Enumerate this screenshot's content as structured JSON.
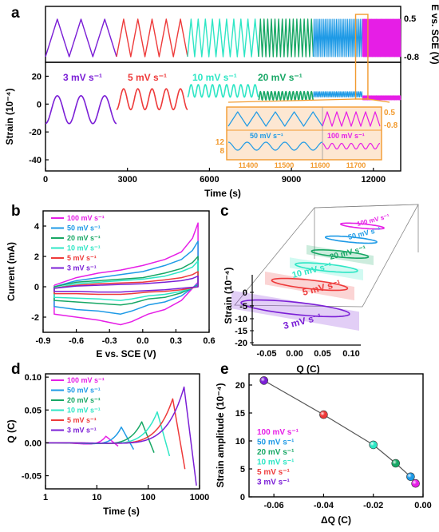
{
  "colors": {
    "r3": "#7b1fd6",
    "r5": "#ee3a3a",
    "r10": "#2ee6c5",
    "r20": "#17a765",
    "r50": "#1e9ae6",
    "r100": "#e61ee6",
    "inset_border": "#f29a2e",
    "inset_fill": "#fde7d2",
    "axis": "#000000"
  },
  "chart_data": [
    {
      "panel": "a",
      "type": "line",
      "potential_axis": {
        "ylabel": "E vs. SCE (V)",
        "ticks": [
          "0.5",
          "-0.8"
        ],
        "range": [
          -0.8,
          0.5
        ]
      },
      "strain_axis": {
        "ylabel": "Strain (10⁻⁴)",
        "yticks": [
          "20",
          "0",
          "-20",
          "-40"
        ],
        "ylim": [
          -48,
          30
        ]
      },
      "xlabel": "Time (s)",
      "xticks": [
        "0",
        "3000",
        "6000",
        "9000",
        "12000"
      ],
      "xlim": [
        0,
        13000
      ],
      "segments": [
        {
          "rate": "3 mV s⁻¹",
          "key": "r3",
          "t_start": 0,
          "t_end": 2600,
          "cycles": 3,
          "strain_min": -14,
          "strain_max": 6
        },
        {
          "rate": "5 mV s⁻¹",
          "key": "r5",
          "t_start": 2600,
          "t_end": 5200,
          "cycles": 5,
          "strain_min": -4,
          "strain_max": 11
        },
        {
          "rate": "10 mV s⁻¹",
          "key": "r10",
          "t_start": 5200,
          "t_end": 7800,
          "cycles": 10,
          "strain_min": 5,
          "strain_max": 14
        },
        {
          "rate": "20 mV s⁻¹",
          "key": "r20",
          "t_start": 7800,
          "t_end": 9800,
          "cycles": 15,
          "strain_min": 3,
          "strain_max": 9
        },
        {
          "rate": "50 mV s⁻¹",
          "key": "r50",
          "t_start": 9800,
          "t_end": 11600,
          "cycles": 35,
          "strain_min": 5,
          "strain_max": 9
        },
        {
          "rate": "100 mV s⁻¹",
          "key": "r100",
          "t_start": 11600,
          "t_end": 13000,
          "cycles": 55,
          "strain_min": 3,
          "strain_max": 6
        }
      ],
      "inset": {
        "left_labels": [
          "12",
          "8"
        ],
        "right_labels": [
          "0.5",
          "-0.8"
        ],
        "x_ticks": [
          "11400",
          "11500",
          "11600",
          "11700"
        ],
        "series": [
          "50 mV s⁻¹",
          "100 mV s⁻¹"
        ]
      }
    },
    {
      "panel": "b",
      "type": "line",
      "xlabel": "E vs. SCE (V)",
      "ylabel": "Current (mA)",
      "xlim": [
        -0.9,
        0.6
      ],
      "ylim": [
        -3,
        5
      ],
      "xticks": [
        "-0.9",
        "-0.6",
        "-0.3",
        "0.0",
        "0.3",
        "0.6"
      ],
      "yticks": [
        "4",
        "2",
        "0",
        "-2"
      ],
      "legend": [
        "100 mV s⁻¹",
        "50 mV s⁻¹",
        "20 mV s⁻¹",
        "10 mV s⁻¹",
        "5 mV s⁻¹",
        "3 mV s⁻¹"
      ],
      "series": [
        {
          "name": "100 mV s⁻¹",
          "key": "r100",
          "top": [
            [
              -0.8,
              0.1
            ],
            [
              -0.6,
              0.6
            ],
            [
              -0.4,
              0.9
            ],
            [
              -0.2,
              1.1
            ],
            [
              0.0,
              1.4
            ],
            [
              0.2,
              1.8
            ],
            [
              0.35,
              2.3
            ],
            [
              0.45,
              3.2
            ],
            [
              0.5,
              4.2
            ]
          ],
          "bottom": [
            [
              0.5,
              0.3
            ],
            [
              0.35,
              -0.9
            ],
            [
              0.2,
              -1.5
            ],
            [
              0.05,
              -1.8
            ],
            [
              -0.1,
              -2.3
            ],
            [
              -0.2,
              -2.5
            ],
            [
              -0.4,
              -2.2
            ],
            [
              -0.6,
              -2.0
            ],
            [
              -0.8,
              -1.8
            ]
          ]
        },
        {
          "name": "50 mV s⁻¹",
          "key": "r50",
          "top": [
            [
              -0.8,
              0.0
            ],
            [
              -0.6,
              0.4
            ],
            [
              -0.4,
              0.6
            ],
            [
              -0.2,
              0.8
            ],
            [
              0.0,
              1.0
            ],
            [
              0.2,
              1.4
            ],
            [
              0.35,
              1.8
            ],
            [
              0.45,
              2.4
            ],
            [
              0.5,
              3.0
            ]
          ],
          "bottom": [
            [
              0.5,
              0.2
            ],
            [
              0.35,
              -0.6
            ],
            [
              0.2,
              -1.0
            ],
            [
              0.05,
              -1.2
            ],
            [
              -0.1,
              -1.6
            ],
            [
              -0.2,
              -1.8
            ],
            [
              -0.4,
              -1.6
            ],
            [
              -0.6,
              -1.5
            ],
            [
              -0.8,
              -1.3
            ]
          ]
        },
        {
          "name": "20 mV s⁻¹",
          "key": "r20",
          "top": [
            [
              -0.8,
              0.0
            ],
            [
              -0.6,
              0.3
            ],
            [
              -0.4,
              0.4
            ],
            [
              -0.2,
              0.5
            ],
            [
              0.0,
              0.6
            ],
            [
              0.2,
              0.9
            ],
            [
              0.35,
              1.2
            ],
            [
              0.45,
              1.6
            ],
            [
              0.5,
              2.0
            ]
          ],
          "bottom": [
            [
              0.5,
              0.1
            ],
            [
              0.35,
              -0.4
            ],
            [
              0.2,
              -0.7
            ],
            [
              0.05,
              -0.8
            ],
            [
              -0.1,
              -1.1
            ],
            [
              -0.2,
              -1.2
            ],
            [
              -0.4,
              -1.1
            ],
            [
              -0.6,
              -1.0
            ],
            [
              -0.8,
              -0.9
            ]
          ]
        },
        {
          "name": "10 mV s⁻¹",
          "key": "r10",
          "top": [
            [
              -0.8,
              -0.1
            ],
            [
              -0.6,
              0.2
            ],
            [
              -0.4,
              0.3
            ],
            [
              -0.2,
              0.4
            ],
            [
              0.0,
              0.5
            ],
            [
              0.2,
              0.7
            ],
            [
              0.35,
              1.0
            ],
            [
              0.45,
              1.3
            ],
            [
              0.5,
              1.7
            ]
          ],
          "bottom": [
            [
              0.5,
              0.05
            ],
            [
              0.35,
              -0.3
            ],
            [
              0.2,
              -0.5
            ],
            [
              0.05,
              -0.6
            ],
            [
              -0.1,
              -0.8
            ],
            [
              -0.2,
              -0.9
            ],
            [
              -0.4,
              -0.8
            ],
            [
              -0.6,
              -0.75
            ],
            [
              -0.8,
              -0.7
            ]
          ]
        },
        {
          "name": "5 mV s⁻¹",
          "key": "r5",
          "top": [
            [
              -0.8,
              -0.1
            ],
            [
              -0.6,
              0.1
            ],
            [
              -0.4,
              0.2
            ],
            [
              -0.2,
              0.25
            ],
            [
              0.0,
              0.3
            ],
            [
              0.2,
              0.45
            ],
            [
              0.35,
              0.6
            ],
            [
              0.45,
              0.8
            ],
            [
              0.5,
              1.0
            ]
          ],
          "bottom": [
            [
              0.5,
              0.0
            ],
            [
              0.35,
              -0.2
            ],
            [
              0.2,
              -0.3
            ],
            [
              0.05,
              -0.35
            ],
            [
              -0.1,
              -0.45
            ],
            [
              -0.2,
              -0.5
            ],
            [
              -0.4,
              -0.5
            ],
            [
              -0.6,
              -0.45
            ],
            [
              -0.8,
              -0.45
            ]
          ]
        },
        {
          "name": "3 mV s⁻¹",
          "key": "r3",
          "top": [
            [
              -0.8,
              -0.1
            ],
            [
              -0.6,
              0.05
            ],
            [
              -0.4,
              0.1
            ],
            [
              -0.2,
              0.15
            ],
            [
              0.0,
              0.2
            ],
            [
              0.2,
              0.3
            ],
            [
              0.35,
              0.4
            ],
            [
              0.45,
              0.55
            ],
            [
              0.5,
              0.7
            ]
          ],
          "bottom": [
            [
              0.5,
              0.0
            ],
            [
              0.35,
              -0.1
            ],
            [
              0.2,
              -0.2
            ],
            [
              0.05,
              -0.25
            ],
            [
              -0.1,
              -0.3
            ],
            [
              -0.2,
              -0.35
            ],
            [
              -0.4,
              -0.35
            ],
            [
              -0.6,
              -0.3
            ],
            [
              -0.8,
              -0.3
            ]
          ]
        }
      ]
    },
    {
      "panel": "c",
      "type": "line",
      "xlabel": "Q (C)",
      "ylabel": "Strain (10⁻⁴)",
      "xticks": [
        "-0.05",
        "0.00",
        "0.05",
        "0.10"
      ],
      "yticks": [
        "0",
        "-5",
        "-10",
        "-15",
        "-20"
      ],
      "series": [
        {
          "name": "3 mV s⁻¹",
          "key": "r3"
        },
        {
          "name": "5 mV s⁻¹",
          "key": "r5"
        },
        {
          "name": "10 mV s⁻¹",
          "key": "r10"
        },
        {
          "name": "20 mV s⁻¹",
          "key": "r20"
        },
        {
          "name": "50 mV s⁻¹",
          "key": "r50"
        },
        {
          "name": "100 mV s⁻¹",
          "key": "r100"
        }
      ]
    },
    {
      "panel": "d",
      "type": "line",
      "xlabel": "Time (s)",
      "ylabel": "Q (C)",
      "xscale": "log",
      "xlim": [
        1,
        1000
      ],
      "ylim": [
        -0.07,
        0.105
      ],
      "xticks": [
        "1",
        "10",
        "100",
        "1000"
      ],
      "yticks": [
        "0.10",
        "0.05",
        "0.00",
        "-0.05"
      ],
      "legend": [
        "100 mV s⁻¹",
        "50 mV s⁻¹",
        "20 mV s⁻¹",
        "10 mV s⁻¹",
        "5 mV s⁻¹",
        "3 mV s⁻¹"
      ],
      "series": [
        {
          "name": "100 mV s⁻¹",
          "key": "r100",
          "t_peak": 15,
          "q_peak": 0.018,
          "t_end": 26,
          "q_end": -0.005
        },
        {
          "name": "50 mV s⁻¹",
          "key": "r50",
          "t_peak": 30,
          "q_peak": 0.032,
          "t_end": 52,
          "q_end": -0.01
        },
        {
          "name": "20 mV s⁻¹",
          "key": "r20",
          "t_peak": 75,
          "q_peak": 0.04,
          "t_end": 130,
          "q_end": -0.015
        },
        {
          "name": "10 mV s⁻¹",
          "key": "r10",
          "t_peak": 150,
          "q_peak": 0.055,
          "t_end": 260,
          "q_end": -0.02
        },
        {
          "name": "5 mV s⁻¹",
          "key": "r5",
          "t_peak": 300,
          "q_peak": 0.075,
          "t_end": 520,
          "q_end": -0.04
        },
        {
          "name": "3 mV s⁻¹",
          "key": "r3",
          "t_peak": 500,
          "q_peak": 0.093,
          "t_end": 870,
          "q_end": -0.065
        }
      ]
    },
    {
      "panel": "e",
      "type": "scatter",
      "xlabel": "ΔQ (C)",
      "ylabel": "Strain amplitude (10⁻⁴)",
      "xlim": [
        -0.07,
        0.0
      ],
      "ylim": [
        0,
        22
      ],
      "xticks": [
        "-0.06",
        "-0.04",
        "-0.02",
        "0.00"
      ],
      "yticks": [
        "20",
        "15",
        "10",
        "5",
        "0"
      ],
      "legend": [
        "100 mV s⁻¹",
        "50 mV s⁻¹",
        "20 mV s⁻¹",
        "10 mV s⁻¹",
        "5 mV s⁻¹",
        "3 mV s⁻¹"
      ],
      "points": [
        {
          "name": "3 mV s⁻¹",
          "key": "r3",
          "x": -0.064,
          "y": 20.8
        },
        {
          "name": "5 mV s⁻¹",
          "key": "r5",
          "x": -0.04,
          "y": 14.7
        },
        {
          "name": "10 mV s⁻¹",
          "key": "r10",
          "x": -0.02,
          "y": 9.3
        },
        {
          "name": "20 mV s⁻¹",
          "key": "r20",
          "x": -0.011,
          "y": 6.0
        },
        {
          "name": "50 mV s⁻¹",
          "key": "r50",
          "x": -0.005,
          "y": 3.6
        },
        {
          "name": "100 mV s⁻¹",
          "key": "r100",
          "x": -0.003,
          "y": 2.4
        }
      ]
    }
  ],
  "panel_labels": [
    "a",
    "b",
    "c",
    "d",
    "e"
  ]
}
